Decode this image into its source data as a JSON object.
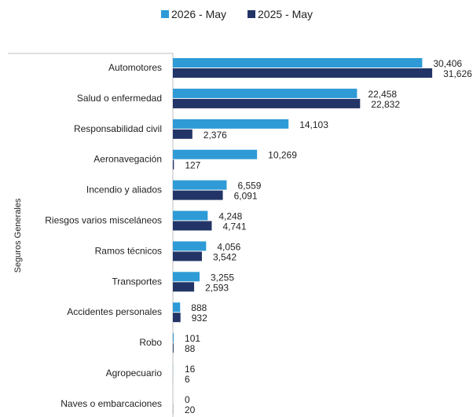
{
  "chart_data": {
    "type": "bar",
    "orientation": "horizontal",
    "title": "",
    "ylabel": "Seguros Generales",
    "xlabel": "",
    "legend_position": "top-center",
    "grid": false,
    "xlim": [
      0,
      32000
    ],
    "categories": [
      "Automotores",
      "Salud o enfermedad",
      "Responsabilidad civil",
      "Aeronavegación",
      "Incendio y aliados",
      "Riesgos varios misceláneos",
      "Ramos técnicos",
      "Transportes",
      "Accidentes personales",
      "Robo",
      "Agropecuario",
      "Naves o embarcaciones"
    ],
    "series": [
      {
        "name": "2026 - May",
        "color": "#2e9bd6",
        "values": [
          30406,
          22458,
          14103,
          10269,
          6559,
          4248,
          4056,
          3255,
          888,
          101,
          16,
          0
        ],
        "labels": [
          "30,406",
          "22,458",
          "14,103",
          "10,269",
          "6,559",
          "4,248",
          "4,056",
          "3,255",
          "888",
          "101",
          "16",
          "0"
        ]
      },
      {
        "name": "2025 - May",
        "color": "#233567",
        "values": [
          31626,
          22832,
          2376,
          127,
          6091,
          4741,
          3542,
          2593,
          932,
          88,
          6,
          20
        ],
        "labels": [
          "31,626",
          "22,832",
          "2,376",
          "127",
          "6,091",
          "4,741",
          "3,542",
          "2,593",
          "932",
          "88",
          "6",
          "20"
        ]
      }
    ]
  }
}
